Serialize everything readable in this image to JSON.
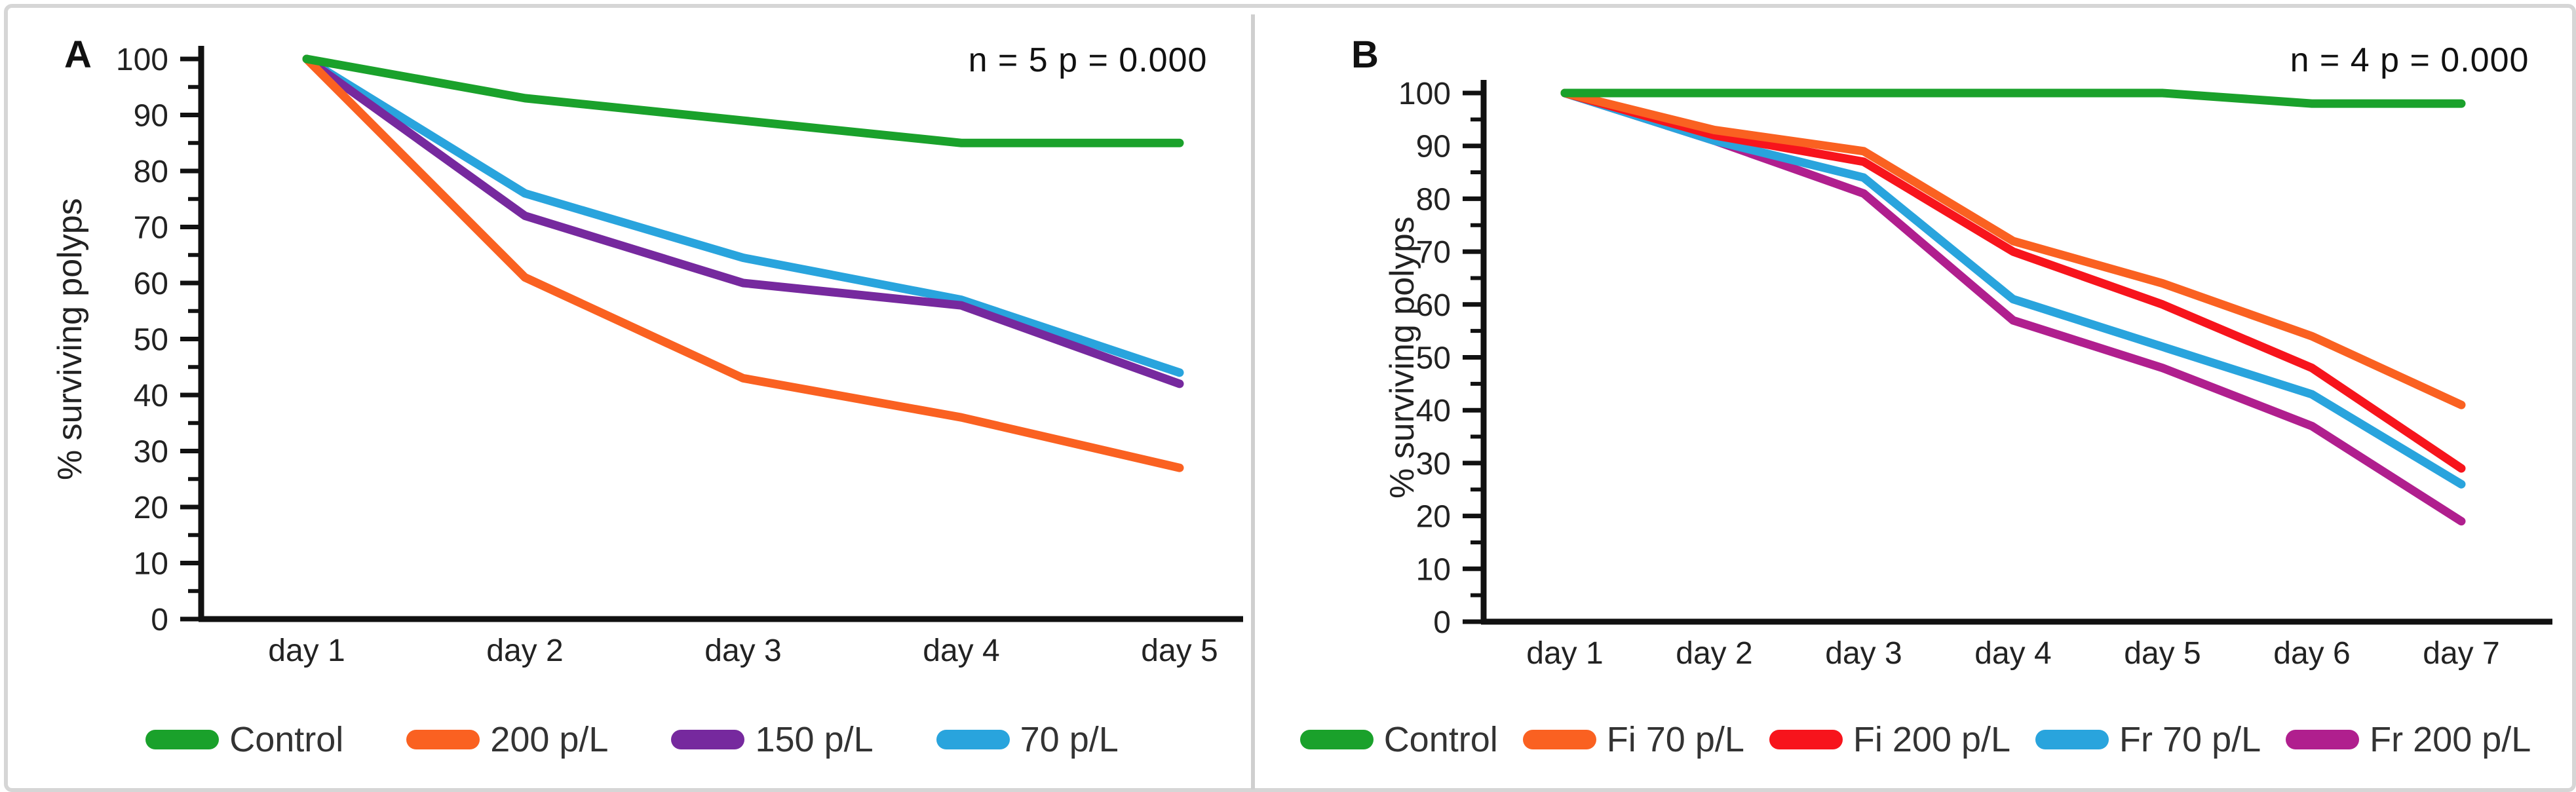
{
  "panels": [
    {
      "letter": "A",
      "annotation": "n = 5 p = 0.000",
      "y_axis_label": "% surviving polyps"
    },
    {
      "letter": "B",
      "annotation": "n = 4 p = 0.000",
      "y_axis_label": "% surviving polyps"
    }
  ],
  "chart_data": [
    {
      "type": "line",
      "title": "",
      "categories": [
        "day 1",
        "day 2",
        "day 3",
        "day 4",
        "day 5"
      ],
      "xlabel": "",
      "ylabel": "% surviving polyps",
      "ylim": [
        0,
        100
      ],
      "ytick_step": 10,
      "grid": false,
      "legend_position": "bottom",
      "annotation": "n = 5 p = 0.000",
      "series": [
        {
          "name": "Control",
          "color": "#1aa12b",
          "values": [
            100,
            93,
            89,
            85,
            85
          ]
        },
        {
          "name": "200 p/L",
          "color": "#fa6121",
          "values": [
            100,
            61,
            43,
            36,
            27
          ]
        },
        {
          "name": "150 p/L",
          "color": "#76299e",
          "values": [
            100,
            72,
            60,
            56,
            42
          ]
        },
        {
          "name": "70 p/L",
          "color": "#29a4dd",
          "values": [
            100,
            76,
            64.5,
            57,
            44
          ]
        }
      ]
    },
    {
      "type": "line",
      "title": "",
      "categories": [
        "day 1",
        "day 2",
        "day 3",
        "day 4",
        "day 5",
        "day 6",
        "day 7"
      ],
      "xlabel": "",
      "ylabel": "% surviving polyps",
      "ylim": [
        0,
        100
      ],
      "ytick_step": 10,
      "grid": false,
      "legend_position": "bottom",
      "annotation": "n = 4 p = 0.000",
      "series": [
        {
          "name": "Control",
          "color": "#1aa12b",
          "values": [
            100,
            100,
            100,
            100,
            100,
            98,
            98
          ]
        },
        {
          "name": "Fi 70 p/L",
          "color": "#fa6121",
          "values": [
            100,
            93,
            89,
            72,
            64,
            54,
            41
          ]
        },
        {
          "name": "Fi 200 p/L",
          "color": "#f7141c",
          "values": [
            100,
            92,
            87,
            70,
            60,
            48,
            29
          ]
        },
        {
          "name": "Fr 70 p/L",
          "color": "#29a4dd",
          "values": [
            100,
            91,
            84,
            61,
            52,
            43,
            26
          ]
        },
        {
          "name": "Fr 200 p/L",
          "color": "#b01f8e",
          "values": [
            100,
            91,
            81,
            57,
            48,
            37,
            19
          ]
        }
      ]
    }
  ]
}
